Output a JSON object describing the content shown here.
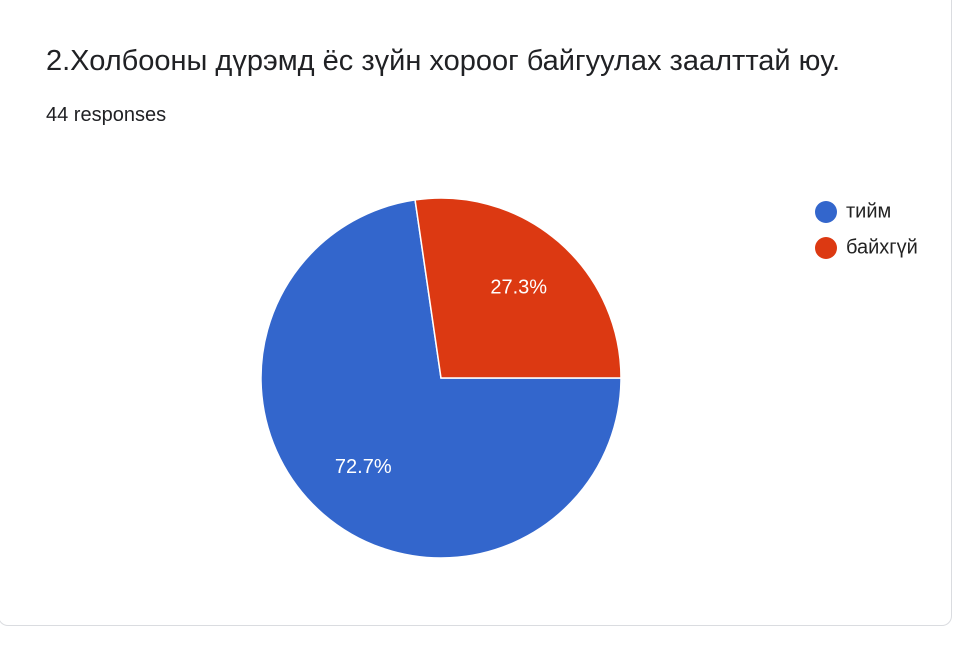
{
  "chart_data": {
    "type": "pie",
    "title": "2.Холбооны дүрэмд ёс зүйн хороог байгуулах заалттай юу.",
    "subtitle": "44 responses",
    "categories": [
      "тийм",
      "байхгүй"
    ],
    "values": [
      72.7,
      27.3
    ],
    "value_labels": [
      "72.7%",
      "27.3%"
    ],
    "colors": [
      "#3366cc",
      "#dc3912"
    ],
    "legend": "right"
  }
}
